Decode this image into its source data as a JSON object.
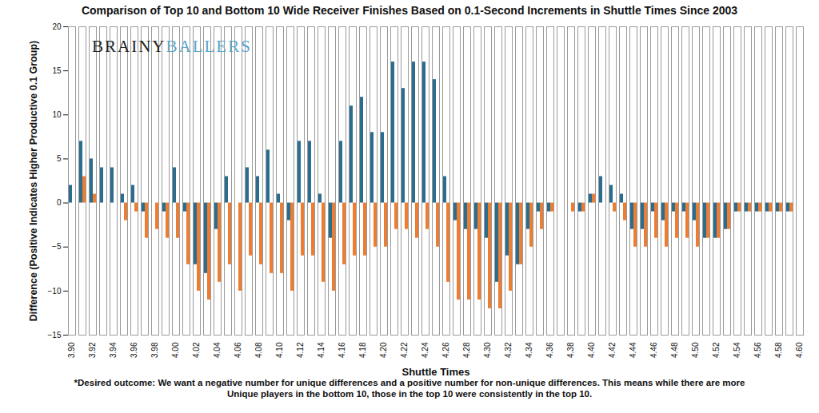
{
  "chart_data": {
    "type": "bar",
    "title": "Comparison of Top 10 and Bottom 10 Wide Receiver Finishes Based on 0.1-Second Increments in Shuttle Times Since 2003",
    "xlabel": "Shuttle Times",
    "ylabel": "Difference (Positive Indicates Higher Productive 0.1 Group)",
    "caption": "*Desired outcome: We want a negative number for unique differences and a positive number for non-unique differences. This means while there are more Unique players in the bottom 10, those in the top 10 were consistently in the top 10.",
    "annotations": [
      "BRAINY",
      "BALLERS"
    ],
    "categories": [
      "3.90",
      null,
      "3.92",
      null,
      "3.94",
      null,
      "3.96",
      null,
      "3.98",
      null,
      "4.00",
      null,
      "4.02",
      null,
      "4.04",
      null,
      "4.06",
      null,
      "4.08",
      null,
      "4.10",
      null,
      "4.12",
      null,
      "4.14",
      null,
      "4.16",
      null,
      "4.18",
      null,
      "4.20",
      null,
      "4.22",
      null,
      "4.24",
      null,
      "4.26",
      null,
      "4.28",
      null,
      "4.30",
      null,
      "4.32",
      null,
      "4.34",
      null,
      "4.36",
      null,
      "4.38",
      null,
      "4.40",
      null,
      "4.42",
      null,
      "4.44",
      null,
      "4.46",
      null,
      "4.48",
      null,
      "4.50",
      null,
      "4.52",
      null,
      "4.54",
      null,
      "4.56",
      null,
      "4.58",
      null,
      "4.60"
    ],
    "series": [
      {
        "color": "#2b6d8e",
        "values": [
          2,
          7,
          5,
          4,
          4,
          1,
          2,
          -1,
          0,
          -1,
          4,
          -1,
          -7,
          -8,
          -3,
          3,
          0,
          4,
          3,
          6,
          1,
          -2,
          7,
          7,
          1,
          -4,
          7,
          11,
          12,
          8,
          8,
          16,
          13,
          16,
          16,
          14,
          3,
          -2,
          -3,
          -3,
          -4,
          -9,
          -6,
          -7,
          -3,
          -1,
          -1,
          0,
          0,
          -1,
          1,
          3,
          2,
          1,
          -3,
          -3,
          -1,
          -2,
          -1,
          -1,
          -2,
          -4,
          -4,
          -3,
          -1,
          -1,
          -1,
          -1,
          -1,
          -1,
          0
        ]
      },
      {
        "color": "#ed7d31",
        "values": [
          0,
          3,
          1,
          0,
          0,
          -2,
          -1,
          -4,
          -3,
          -4,
          -4,
          -7,
          -10,
          -11,
          -9,
          -7,
          -10,
          -6,
          -7,
          -8,
          -8,
          -10,
          -6,
          -6,
          -9,
          -10,
          -7,
          -6,
          -6,
          -5,
          -5,
          -3,
          -3,
          -4,
          -3,
          -5,
          -9,
          -11,
          -11,
          -11,
          -12,
          -12,
          -10,
          -7,
          -5,
          -3,
          -1,
          0,
          -1,
          -1,
          1,
          0,
          -1,
          -2,
          -5,
          -5,
          -4,
          -5,
          -4,
          -4,
          -5,
          -4,
          -4,
          -3,
          -1,
          -1,
          -1,
          -1,
          -1,
          -1,
          0
        ]
      }
    ],
    "ylim": [
      -15,
      20
    ],
    "yticks": [
      -15,
      -10,
      -5,
      0,
      5,
      10,
      15,
      20
    ],
    "grid": false
  }
}
